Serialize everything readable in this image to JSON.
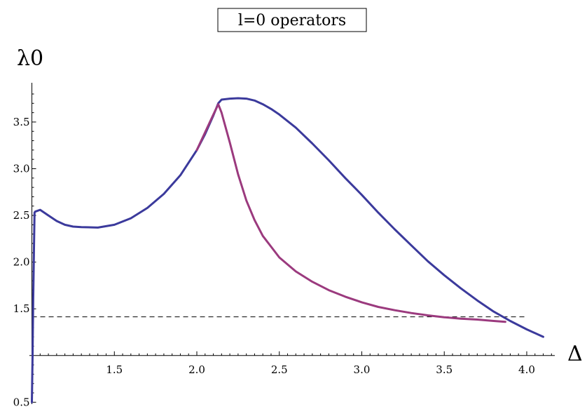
{
  "chart_data": {
    "type": "line",
    "title": "l=0 operators",
    "xlabel": "Δ",
    "ylabel": "λ0",
    "xlim": [
      0.985,
      4.17
    ],
    "ylim": [
      0.48,
      3.92
    ],
    "x_axis_crossing_y": 1.0,
    "x_ticks": [
      1.5,
      2.0,
      2.5,
      3.0,
      3.5,
      4.0
    ],
    "x_tick_labels": [
      "1.5",
      "2.0",
      "2.5",
      "3.0",
      "3.5",
      "4.0"
    ],
    "y_ticks": [
      0.5,
      1.5,
      2.0,
      2.5,
      3.0,
      3.5
    ],
    "y_tick_labels": [
      "0.5",
      "1.5",
      "2.0",
      "2.5",
      "3.0",
      "3.5"
    ],
    "reference_line": {
      "y": 1.414,
      "x_start": 1.0,
      "x_end": 4.0,
      "style": "dashed",
      "color": "#000000"
    },
    "series": [
      {
        "color": "#3b3a9c",
        "x": [
          1.0,
          1.004,
          1.008,
          1.012,
          1.016,
          1.02,
          1.05,
          1.1,
          1.15,
          1.2,
          1.25,
          1.3,
          1.4,
          1.5,
          1.6,
          1.7,
          1.8,
          1.9,
          2.0,
          2.05,
          2.1,
          2.13,
          2.15,
          2.2,
          2.25,
          2.3,
          2.35,
          2.4,
          2.45,
          2.5,
          2.6,
          2.7,
          2.8,
          2.9,
          3.0,
          3.1,
          3.2,
          3.3,
          3.4,
          3.5,
          3.6,
          3.7,
          3.8,
          3.9,
          4.0,
          4.1
        ],
        "y": [
          0.5,
          1.0,
          1.6,
          2.1,
          2.53,
          2.54,
          2.56,
          2.5,
          2.44,
          2.4,
          2.38,
          2.375,
          2.37,
          2.4,
          2.47,
          2.58,
          2.73,
          2.93,
          3.2,
          3.37,
          3.57,
          3.7,
          3.74,
          3.75,
          3.755,
          3.75,
          3.73,
          3.69,
          3.64,
          3.58,
          3.44,
          3.27,
          3.09,
          2.9,
          2.72,
          2.53,
          2.35,
          2.18,
          2.01,
          1.86,
          1.72,
          1.59,
          1.47,
          1.37,
          1.28,
          1.2
        ]
      },
      {
        "color": "#9b3a7e",
        "x": [
          2.0,
          2.05,
          2.1,
          2.13,
          2.15,
          2.2,
          2.25,
          2.3,
          2.35,
          2.4,
          2.5,
          2.6,
          2.7,
          2.8,
          2.9,
          3.0,
          3.1,
          3.2,
          3.3,
          3.4,
          3.5,
          3.6,
          3.7,
          3.8,
          3.87
        ],
        "y": [
          3.2,
          3.39,
          3.58,
          3.69,
          3.6,
          3.28,
          2.94,
          2.66,
          2.45,
          2.28,
          2.05,
          1.9,
          1.79,
          1.7,
          1.63,
          1.57,
          1.52,
          1.485,
          1.455,
          1.43,
          1.41,
          1.395,
          1.385,
          1.37,
          1.36
        ]
      }
    ]
  }
}
